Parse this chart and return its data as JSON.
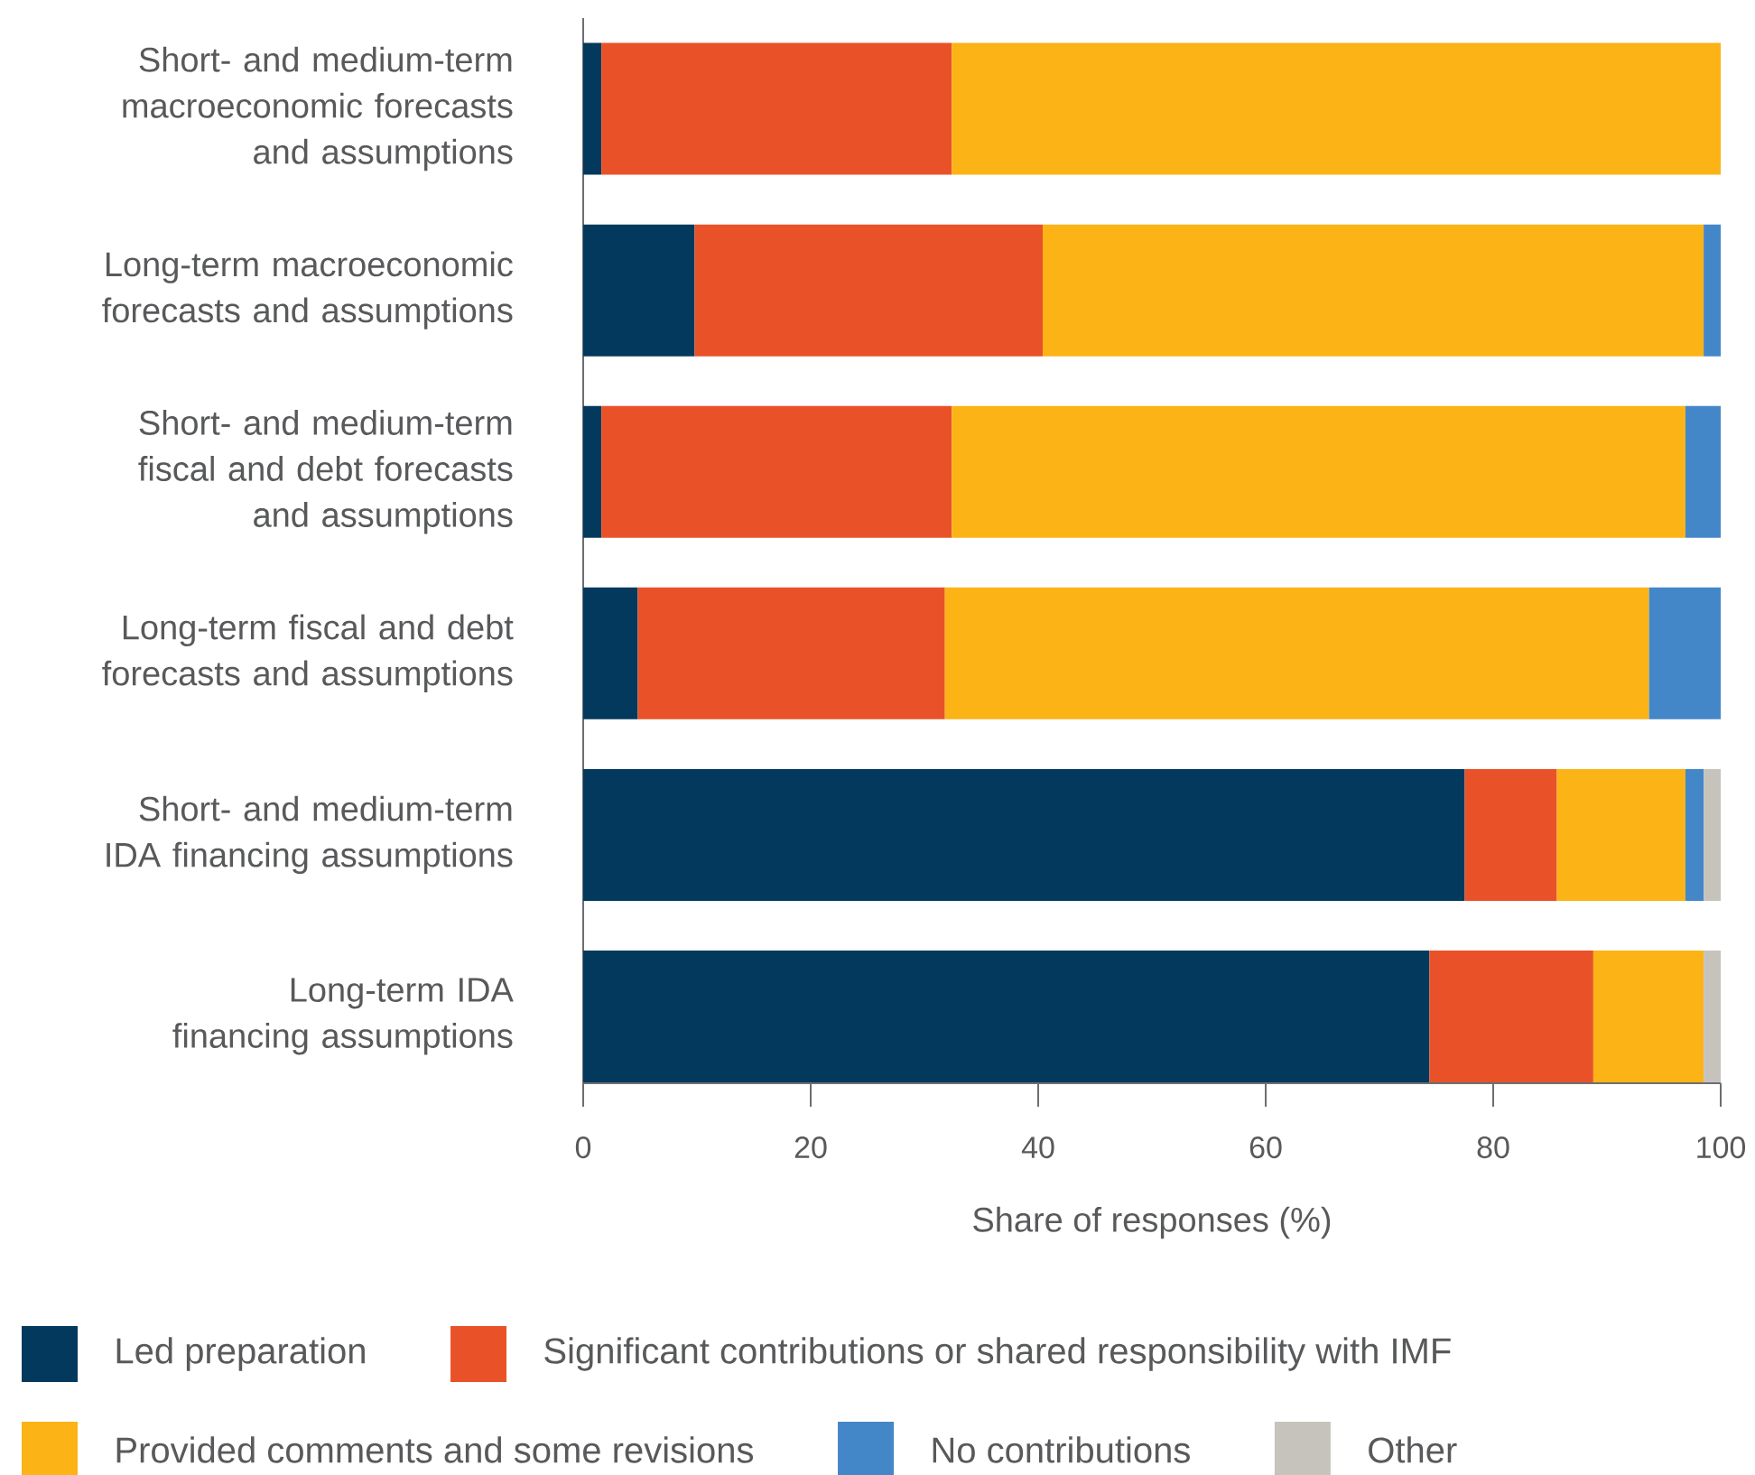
{
  "chart_data": {
    "type": "bar",
    "orientation": "horizontal",
    "stacked": true,
    "categories": [
      "Short- and medium-term macroeconomic forecasts and assumptions",
      "Long-term macroeconomic forecasts and assumptions",
      "Short- and medium-term fiscal and debt forecasts and assumptions",
      "Long-term fiscal and debt forecasts and assumptions",
      "Short- and medium-term IDA financing assumptions",
      "Long-term IDA financing assumptions"
    ],
    "series": [
      {
        "name": "Led preparation",
        "color": "#03395c",
        "values": [
          1.6,
          9.8,
          1.6,
          4.8,
          77.5,
          74.4
        ]
      },
      {
        "name": "Significant contributions or shared responsibility with IMF",
        "color": "#e95228",
        "values": [
          30.8,
          30.6,
          30.8,
          27.0,
          8.1,
          14.4
        ]
      },
      {
        "name": "Provided comments and some revisions",
        "color": "#fcb316",
        "values": [
          67.6,
          58.1,
          64.5,
          61.9,
          11.3,
          9.7
        ]
      },
      {
        "name": "No contributions",
        "color": "#4487c9",
        "values": [
          null,
          1.5,
          3.1,
          6.3,
          1.6,
          null
        ]
      },
      {
        "name": "Other",
        "color": "#c5c3bc",
        "values": [
          null,
          null,
          null,
          null,
          1.5,
          1.5
        ]
      }
    ],
    "xlabel": "Share of responses (%)",
    "xlim": [
      0,
      100
    ],
    "xticks": [
      0,
      20,
      40,
      60,
      80,
      100
    ],
    "legend": "bottom"
  }
}
